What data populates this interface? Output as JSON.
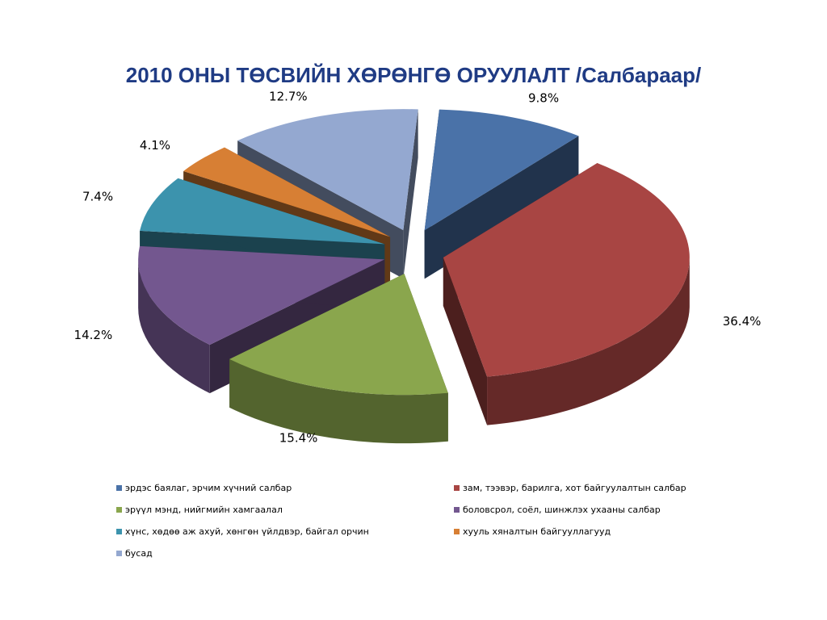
{
  "title": "2010 ОНЫ ТӨСВИЙН ХӨРӨНГӨ ОРУУЛАЛТ /Салбараар/",
  "chart_data": {
    "type": "pie",
    "title": "2010 ОНЫ ТӨСВИЙН ХӨРӨНГӨ ОРУУЛАЛТ /Салбараар/",
    "three_d": true,
    "exploded": true,
    "legend_position": "bottom",
    "slices": [
      {
        "name": "эрдэс баялаг, эрчим хүчний салбар",
        "value": 9.8,
        "label": "9.8%",
        "color": "#4a72a8"
      },
      {
        "name": "зам, тээвэр, барилга, хот байгуулалтын салбар",
        "value": 36.4,
        "label": "36.4%",
        "color": "#a84543"
      },
      {
        "name": "эрүүл мэнд, нийгмийн хамгаалал",
        "value": 15.4,
        "label": "15.4%",
        "color": "#8aa64d"
      },
      {
        "name": "боловсрол, соёл, шинжлэх ухааны салбар",
        "value": 14.2,
        "label": "14.2%",
        "color": "#73578f"
      },
      {
        "name": "хүнс, хөдөө аж ахуй, хөнгөн үйлдвэр, байгал орчин",
        "value": 7.4,
        "label": "7.4%",
        "color": "#3c93ad"
      },
      {
        "name": "хууль хяналтын байгууллагууд",
        "value": 4.1,
        "label": "4.1%",
        "color": "#d77f34"
      },
      {
        "name": "бусад",
        "value": 12.7,
        "label": "12.7%",
        "color": "#94a8d0"
      }
    ]
  }
}
